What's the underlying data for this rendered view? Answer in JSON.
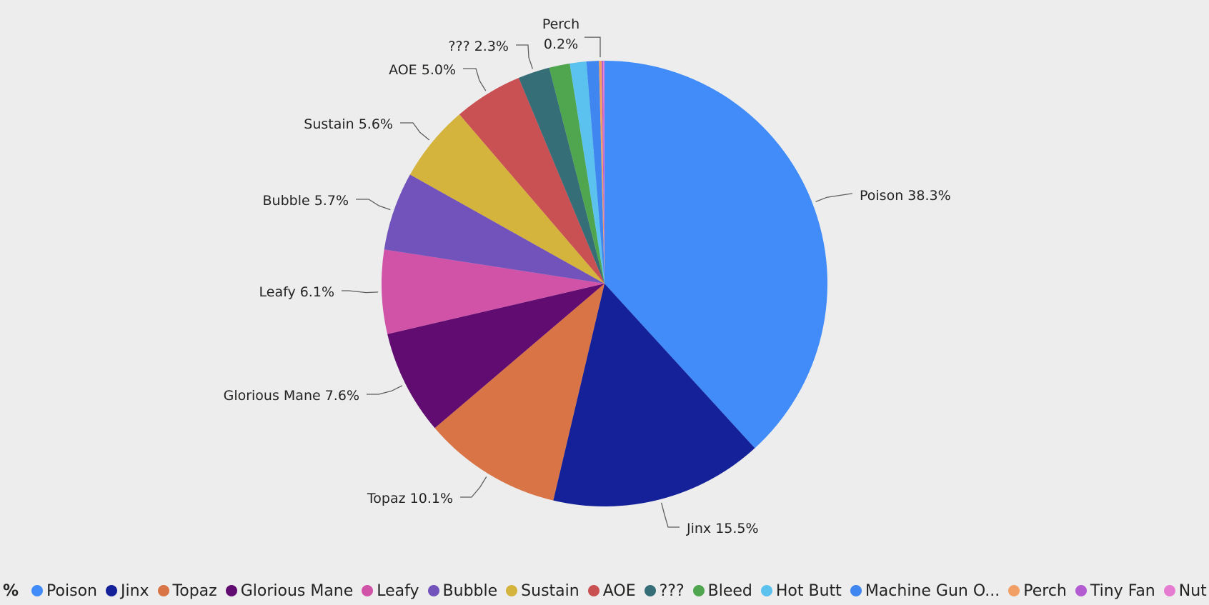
{
  "chart_data": {
    "type": "pie",
    "legend_title": "%",
    "legend_position": "bottom",
    "slices": [
      {
        "label": "Poison",
        "value": 38.3,
        "color": "#418CF9",
        "data_label": "Poison 38.3%"
      },
      {
        "label": "Jinx",
        "value": 15.5,
        "color": "#142198",
        "data_label": "Jinx 15.5%"
      },
      {
        "label": "Topaz",
        "value": 10.1,
        "color": "#D97446",
        "data_label": "Topaz 10.1%"
      },
      {
        "label": "Glorious Mane",
        "value": 7.6,
        "color": "#610C70",
        "data_label": "Glorious Mane 7.6%"
      },
      {
        "label": "Leafy",
        "value": 6.1,
        "color": "#D053A7",
        "data_label": "Leafy 6.1%"
      },
      {
        "label": "Bubble",
        "value": 5.7,
        "color": "#7153BB",
        "data_label": "Bubble 5.7%"
      },
      {
        "label": "Sustain",
        "value": 5.6,
        "color": "#D4B43D",
        "data_label": "Sustain 5.6%"
      },
      {
        "label": "AOE",
        "value": 5.0,
        "color": "#C95154",
        "data_label": "AOE 5.0%"
      },
      {
        "label": "???",
        "value": 2.3,
        "color": "#366E78",
        "data_label": "??? 2.3%"
      },
      {
        "label": "Bleed",
        "value": 1.5,
        "color": "#4FA64F",
        "data_label": ""
      },
      {
        "label": "Hot Butt",
        "value": 1.2,
        "color": "#5BC1EE",
        "data_label": ""
      },
      {
        "label": "Machine Gun O...",
        "value": 0.9,
        "color": "#3F86F0",
        "data_label": ""
      },
      {
        "label": "Perch",
        "value": 0.2,
        "color": "#F19F65",
        "data_label": "Perch|0.2%"
      },
      {
        "label": "Tiny Fan",
        "value": 0.1,
        "color": "#B35BD0",
        "data_label": ""
      },
      {
        "label": "Nut Cracker",
        "value": 0.1,
        "color": "#E57CD2",
        "data_label": ""
      }
    ]
  }
}
